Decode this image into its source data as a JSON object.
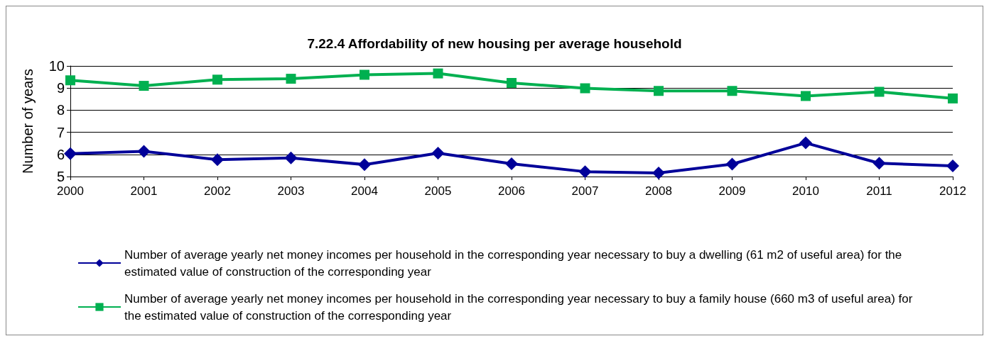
{
  "chart_data": {
    "type": "line",
    "title": "7.22.4 Affordability of new housing per average household",
    "ylabel": "Number of years",
    "categories": [
      "2000",
      "2001",
      "2002",
      "2003",
      "2004",
      "2005",
      "2006",
      "2007",
      "2008",
      "2009",
      "2010",
      "2011",
      "2012"
    ],
    "series": [
      {
        "name": "Number of average yearly net money incomes per household in the corresponding year necessary to buy a dwelling (61 m2 of useful area) for the estimated value of construction of the corresponding year",
        "color": "#000099",
        "marker": "diamond",
        "values": [
          6.03,
          6.14,
          5.76,
          5.84,
          5.54,
          6.06,
          5.58,
          5.22,
          5.16,
          5.56,
          6.52,
          5.6,
          5.48
        ]
      },
      {
        "name": "Number of average yearly net money incomes per household in the corresponding year necessary to buy a family house (660 m3 of useful area) for the estimated value of construction of the corresponding year",
        "color": "#00b050",
        "marker": "square",
        "values": [
          9.35,
          9.1,
          9.38,
          9.42,
          9.6,
          9.66,
          9.23,
          8.99,
          8.87,
          8.87,
          8.64,
          8.83,
          8.53
        ]
      }
    ],
    "ylim": [
      5,
      10
    ],
    "yticks": [
      5,
      6,
      7,
      8,
      9,
      10
    ],
    "grid": "y",
    "legend": "bottom",
    "line_style": "solid"
  }
}
